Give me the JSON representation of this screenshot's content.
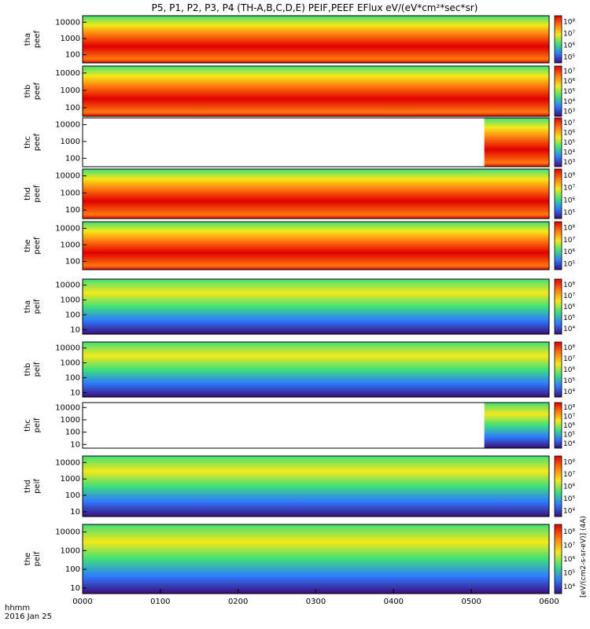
{
  "title": "P5, P1, P2, P3, P4 (TH-A,B,C,D,E) PEIF,PEEF EFlux eV/(eV*cm²*sec*sr)",
  "x_axis": {
    "ticks": [
      "0000",
      "0100",
      "0200",
      "0300",
      "0400",
      "0500",
      "0600"
    ],
    "label_line1": "hhmm",
    "label_line2": "2016 Jan 25"
  },
  "colorbar_unit_label": "[eV/(cm2-s-sr-eV)] (4A)",
  "colors": {
    "low": "#3b0d7a",
    "mid_low": "#2f7bff",
    "mid": "#3fe07a",
    "mid_high": "#f5e81a",
    "high": "#ff7a10",
    "top": "#e00000"
  },
  "chart_data": {
    "type": "heatmap",
    "title": "P5, P1, P2, P3, P4 (TH-A,B,C,D,E) PEIF,PEEF EFlux eV/(eV*cm²*sec*sr)",
    "x_range_hhmm": [
      "0000",
      "0600"
    ],
    "y_scale": "log",
    "panels": [
      {
        "probe": "tha",
        "quantity": "peef",
        "label": "tha peef",
        "yticks": [
          "100",
          "1000",
          "10000"
        ],
        "cbar_ticks": [
          "10⁵",
          "10⁶",
          "10⁷",
          "10⁸"
        ],
        "coverage_start_hhmm": "0000",
        "dominant": "high"
      },
      {
        "probe": "thb",
        "quantity": "peef",
        "label": "thb peef",
        "yticks": [
          "100",
          "1000",
          "10000"
        ],
        "cbar_ticks": [
          "10³",
          "10⁴",
          "10⁵",
          "10⁶",
          "10⁷"
        ],
        "coverage_start_hhmm": "0000",
        "dominant": "high"
      },
      {
        "probe": "thc",
        "quantity": "peef",
        "label": "thc peef",
        "yticks": [
          "100",
          "1000",
          "10000"
        ],
        "cbar_ticks": [
          "10³",
          "10⁴",
          "10⁵",
          "10⁶",
          "10⁷"
        ],
        "coverage_start_hhmm": "0510",
        "dominant": "mid_high"
      },
      {
        "probe": "thd",
        "quantity": "peef",
        "label": "thd peef",
        "yticks": [
          "100",
          "1000",
          "10000"
        ],
        "cbar_ticks": [
          "10⁵",
          "10⁶",
          "10⁷",
          "10⁸"
        ],
        "coverage_start_hhmm": "0000",
        "dominant": "high"
      },
      {
        "probe": "the",
        "quantity": "peef",
        "label": "the peef",
        "yticks": [
          "100",
          "1000",
          "10000"
        ],
        "cbar_ticks": [
          "10⁵",
          "10⁶",
          "10⁷",
          "10⁸"
        ],
        "coverage_start_hhmm": "0000",
        "dominant": "high"
      },
      {
        "probe": "tha",
        "quantity": "peif",
        "label": "tha peif",
        "yticks": [
          "10",
          "100",
          "1000",
          "10000"
        ],
        "cbar_ticks": [
          "10⁴",
          "10⁵",
          "10⁶",
          "10⁷",
          "10⁸"
        ],
        "coverage_start_hhmm": "0000",
        "dominant": "mid"
      },
      {
        "probe": "thb",
        "quantity": "peif",
        "label": "thb peif",
        "yticks": [
          "10",
          "100",
          "1000",
          "10000"
        ],
        "cbar_ticks": [
          "10⁴",
          "10⁵",
          "10⁶",
          "10⁷",
          "10⁸"
        ],
        "coverage_start_hhmm": "0000",
        "dominant": "mid"
      },
      {
        "probe": "thc",
        "quantity": "peif",
        "label": "thc peif",
        "yticks": [
          "10",
          "100",
          "1000",
          "10000"
        ],
        "cbar_ticks": [
          "10⁴",
          "10⁵",
          "10⁶",
          "10⁷",
          "10⁸"
        ],
        "coverage_start_hhmm": "0510",
        "dominant": "mid"
      },
      {
        "probe": "thd",
        "quantity": "peif",
        "label": "thd peif",
        "yticks": [
          "10",
          "100",
          "1000",
          "10000"
        ],
        "cbar_ticks": [
          "10⁴",
          "10⁵",
          "10⁶",
          "10⁷",
          "10⁸"
        ],
        "coverage_start_hhmm": "0000",
        "dominant": "mid"
      },
      {
        "probe": "the",
        "quantity": "peif",
        "label": "the peif",
        "yticks": [
          "10",
          "100",
          "1000",
          "10000"
        ],
        "cbar_ticks": [
          "10⁴",
          "10⁵",
          "10⁶",
          "10⁷",
          "10⁸"
        ],
        "coverage_start_hhmm": "0000",
        "dominant": "mid"
      }
    ]
  }
}
